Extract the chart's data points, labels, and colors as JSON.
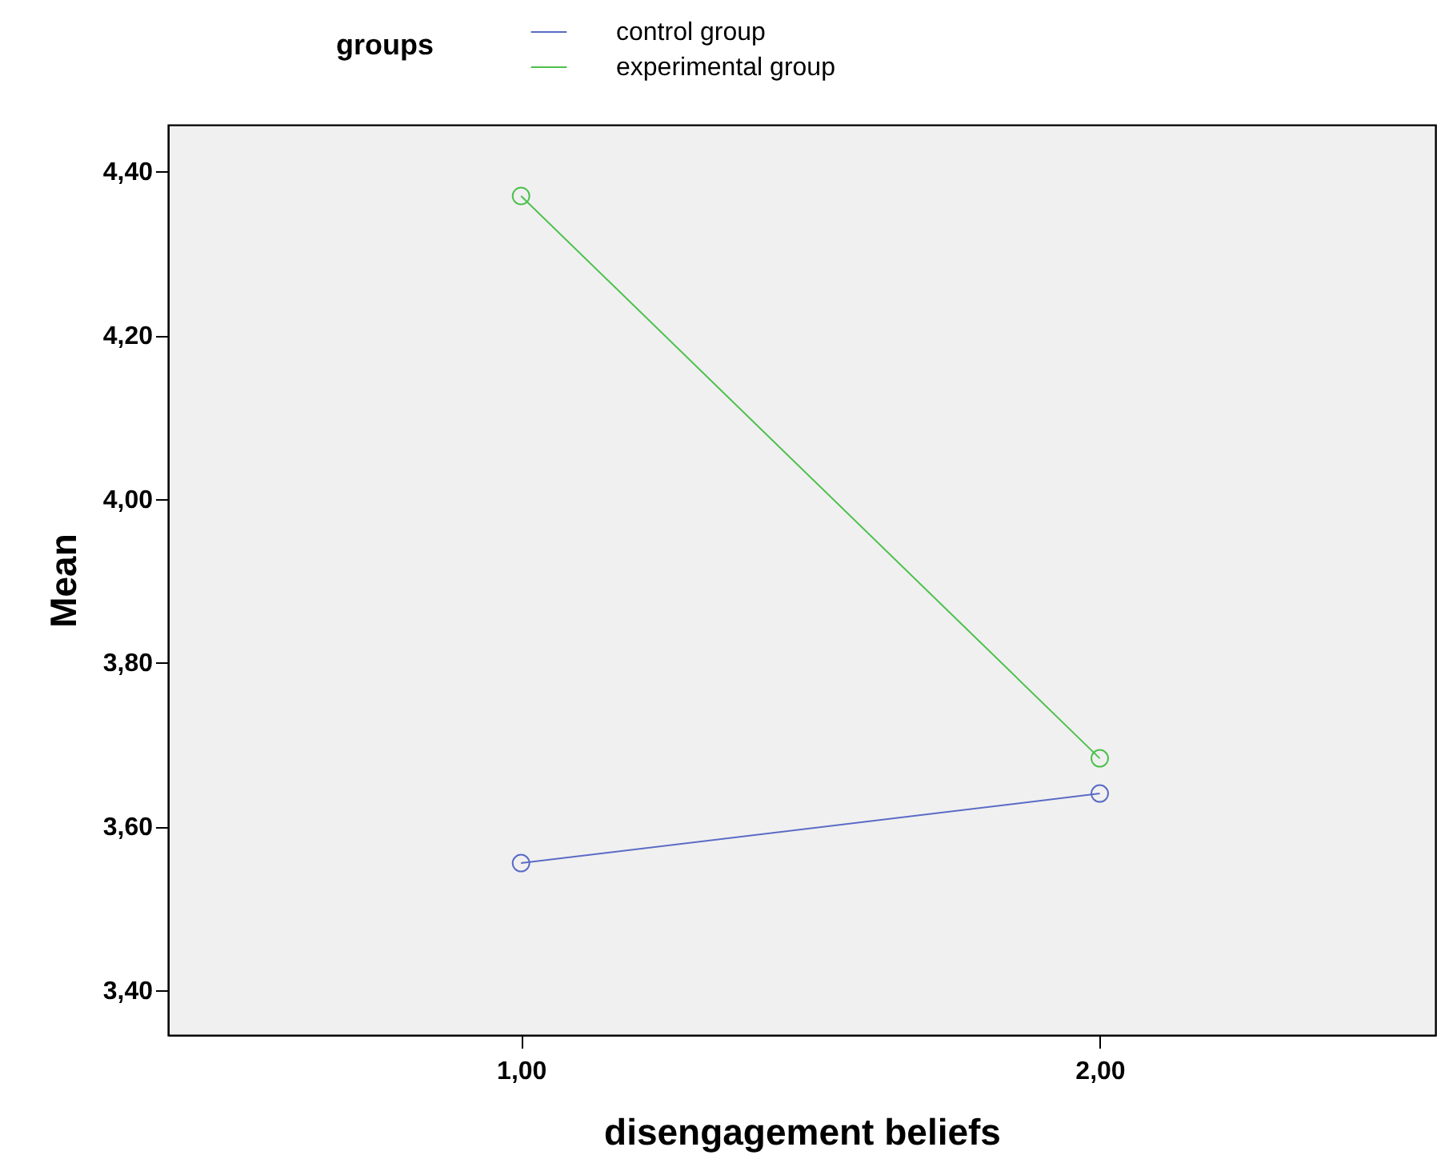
{
  "chart_data": {
    "type": "line",
    "xlabel": "disengagement beliefs",
    "ylabel": "Mean",
    "legend_title": "groups",
    "x": [
      1,
      2
    ],
    "xlim": [
      0.39,
      2.58
    ],
    "xticks": [
      {
        "value": 1,
        "label": "1,00"
      },
      {
        "value": 2,
        "label": "2,00"
      }
    ],
    "ylim": [
      3.345,
      4.457
    ],
    "yticks": [
      {
        "value": 3.4,
        "label": "3,40"
      },
      {
        "value": 3.6,
        "label": "3,60"
      },
      {
        "value": 3.8,
        "label": "3,80"
      },
      {
        "value": 4.0,
        "label": "4,00"
      },
      {
        "value": 4.2,
        "label": "4,20"
      },
      {
        "value": 4.4,
        "label": "4,40"
      }
    ],
    "series": [
      {
        "name": "control group",
        "color": "#5a6bc6",
        "values": [
          3.555,
          3.64
        ]
      },
      {
        "name": " experimental group",
        "color": "#4cc04c",
        "values": [
          4.37,
          3.683
        ]
      }
    ],
    "marker": "circle",
    "line_style": "solid",
    "grid": false,
    "legend": "top"
  }
}
